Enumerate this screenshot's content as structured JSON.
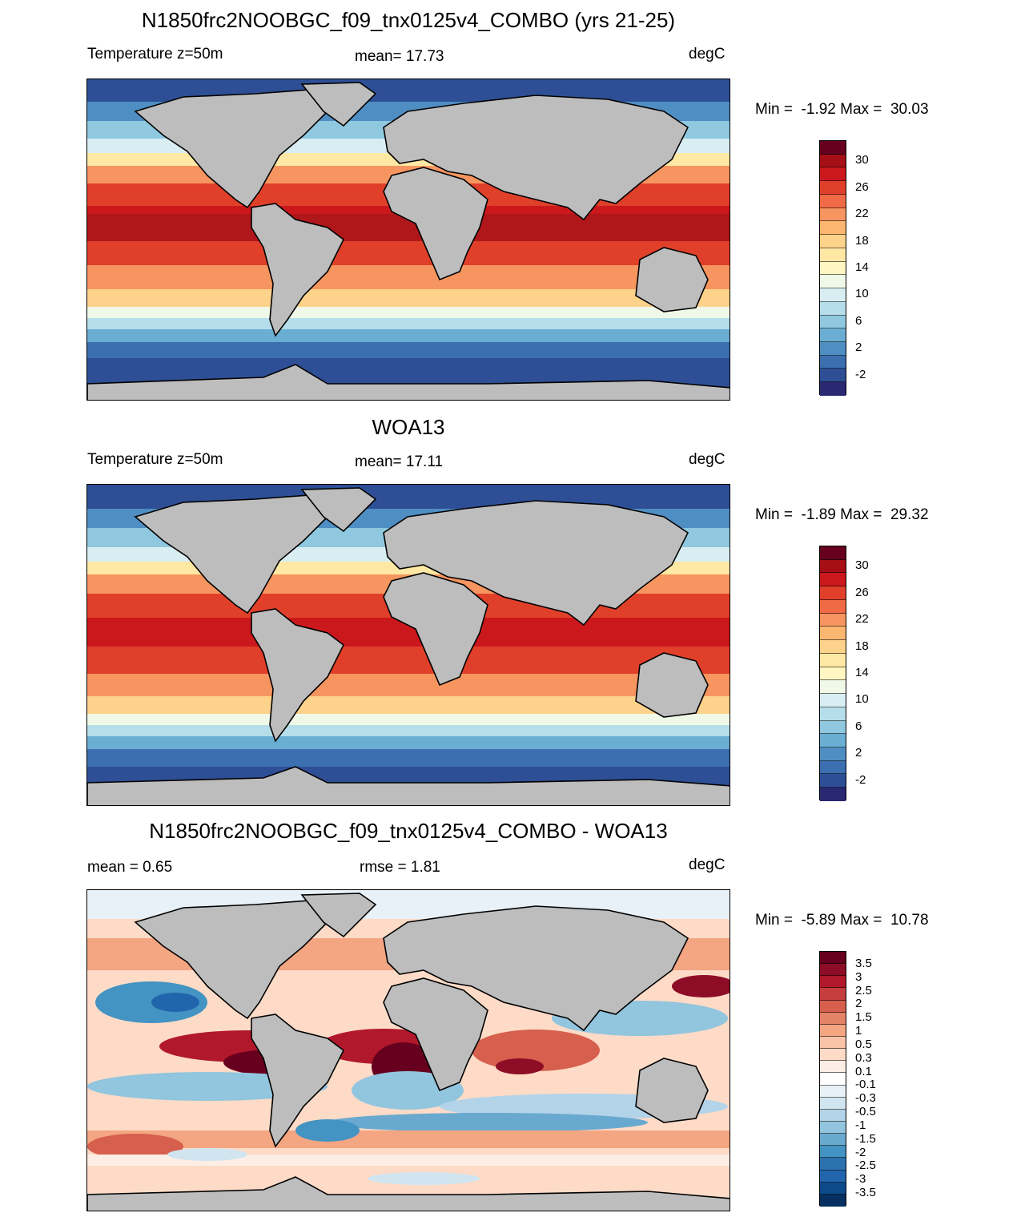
{
  "panels": [
    {
      "title": "N1850frc2NOOBGC_f09_tnx0125v4_COMBO (yrs 21-25)",
      "left_label": "Temperature z=50m",
      "center_label": "mean=  17.73",
      "units": "degC",
      "minmax": "Min =  -1.92 Max =  30.03",
      "colorbar": {
        "ticks": [
          "30",
          "26",
          "22",
          "18",
          "14",
          "10",
          "6",
          "2",
          "-2"
        ],
        "colors": [
          "#67001f",
          "#a50f15",
          "#cb181d",
          "#e0402a",
          "#ef6a45",
          "#f6955f",
          "#fbb66f",
          "#fdd28a",
          "#fee8a4",
          "#fff6c2",
          "#f0f9e8",
          "#d9eef3",
          "#b5deea",
          "#8fc8df",
          "#6aaed3",
          "#4f8ec3",
          "#3c6fb0",
          "#2e4f96",
          "#2a2873"
        ]
      }
    },
    {
      "title": "WOA13",
      "left_label": "Temperature z=50m",
      "center_label": "mean=  17.11",
      "units": "degC",
      "minmax": "Min =  -1.89 Max =  29.32",
      "colorbar": {
        "ticks": [
          "30",
          "26",
          "22",
          "18",
          "14",
          "10",
          "6",
          "2",
          "-2"
        ],
        "colors": [
          "#67001f",
          "#a50f15",
          "#cb181d",
          "#e0402a",
          "#ef6a45",
          "#f6955f",
          "#fbb66f",
          "#fdd28a",
          "#fee8a4",
          "#fff6c2",
          "#f0f9e8",
          "#d9eef3",
          "#b5deea",
          "#8fc8df",
          "#6aaed3",
          "#4f8ec3",
          "#3c6fb0",
          "#2e4f96",
          "#2a2873"
        ]
      }
    },
    {
      "title": "N1850frc2NOOBGC_f09_tnx0125v4_COMBO - WOA13",
      "left_label": "mean =   0.65",
      "center_label": "rmse =   1.81",
      "units": "degC",
      "minmax": "Min =  -5.89 Max =  10.78",
      "colorbar": {
        "ticks": [
          "3.5",
          "3",
          "2.5",
          "2",
          "1.5",
          "1",
          "0.5",
          "0.3",
          "0.1",
          "-0.1",
          "-0.3",
          "-0.5",
          "-1",
          "-1.5",
          "-2",
          "-2.5",
          "-3",
          "-3.5"
        ],
        "colors": [
          "#67001f",
          "#8e0d26",
          "#b2182b",
          "#c53e3d",
          "#d6604d",
          "#e58368",
          "#f4a582",
          "#f8c3a8",
          "#fddbc7",
          "#fdeee5",
          "#ffffff",
          "#e8f1f7",
          "#d1e5f0",
          "#b3d4e8",
          "#92c5de",
          "#6aa9cf",
          "#4393c3",
          "#2c72b0",
          "#2166ac",
          "#0d4a8c",
          "#053061"
        ]
      }
    }
  ]
}
